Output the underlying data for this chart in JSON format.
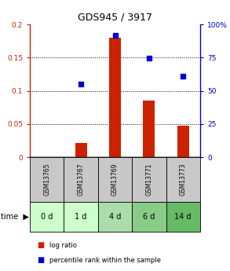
{
  "title": "GDS945 / 3917",
  "samples": [
    "GSM13765",
    "GSM13767",
    "GSM13769",
    "GSM13771",
    "GSM13773"
  ],
  "time_labels": [
    "0 d",
    "1 d",
    "4 d",
    "6 d",
    "14 d"
  ],
  "log_ratio": [
    0.0,
    0.022,
    0.18,
    0.085,
    0.048
  ],
  "percentile_rank": [
    null,
    0.11,
    0.183,
    0.149,
    0.122
  ],
  "bar_color": "#cc2200",
  "dot_color": "#0000cc",
  "ylim_left": [
    0,
    0.2
  ],
  "ylim_right": [
    0,
    100
  ],
  "yticks_left": [
    0,
    0.05,
    0.1,
    0.15,
    0.2
  ],
  "ytick_labels_left": [
    "0",
    "0.05",
    "0.1",
    "0.15",
    "0.2"
  ],
  "yticks_right": [
    0,
    25,
    50,
    75,
    100
  ],
  "ytick_labels_right": [
    "0",
    "25",
    "50",
    "75",
    "100%"
  ],
  "dotted_lines": [
    0.05,
    0.1,
    0.15
  ],
  "time_cell_colors": [
    "#ccffcc",
    "#ccffcc",
    "#aaddaa",
    "#88cc88",
    "#66bb66"
  ],
  "sample_cell_color": "#c8c8c8",
  "legend_items": [
    {
      "label": "log ratio",
      "color": "#cc2200"
    },
    {
      "label": "percentile rank within the sample",
      "color": "#0000cc"
    }
  ]
}
